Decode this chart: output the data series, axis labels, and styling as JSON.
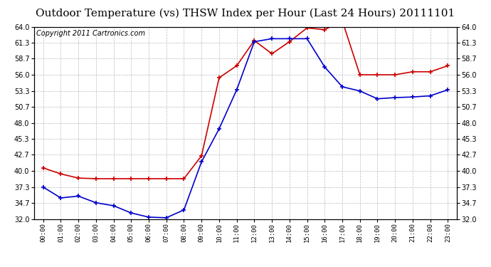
{
  "title": "Outdoor Temperature (vs) THSW Index per Hour (Last 24 Hours) 20111101",
  "copyright": "Copyright 2011 Cartronics.com",
  "hours": [
    0,
    1,
    2,
    3,
    4,
    5,
    6,
    7,
    8,
    9,
    10,
    11,
    12,
    13,
    14,
    15,
    16,
    17,
    18,
    19,
    20,
    21,
    22,
    23
  ],
  "temp": [
    37.3,
    35.5,
    35.8,
    34.7,
    34.2,
    33.0,
    32.3,
    32.2,
    33.5,
    41.5,
    47.0,
    53.5,
    61.5,
    62.0,
    62.0,
    62.0,
    57.3,
    54.0,
    53.3,
    52.0,
    52.2,
    52.3,
    52.5,
    53.5
  ],
  "thsw": [
    40.5,
    39.5,
    38.8,
    38.7,
    38.7,
    38.7,
    38.7,
    38.7,
    38.7,
    42.5,
    55.5,
    57.5,
    61.7,
    59.5,
    61.5,
    63.8,
    63.5,
    65.0,
    56.0,
    56.0,
    56.0,
    56.5,
    56.5,
    57.5
  ],
  "ylim": [
    32.0,
    64.0
  ],
  "yticks": [
    32.0,
    34.7,
    37.3,
    40.0,
    42.7,
    45.3,
    48.0,
    50.7,
    53.3,
    56.0,
    58.7,
    61.3,
    64.0
  ],
  "temp_color": "#0000cc",
  "thsw_color": "#cc0000",
  "bg_color": "#ffffff",
  "grid_color": "#aaaaaa",
  "title_fontsize": 11,
  "copyright_fontsize": 7
}
